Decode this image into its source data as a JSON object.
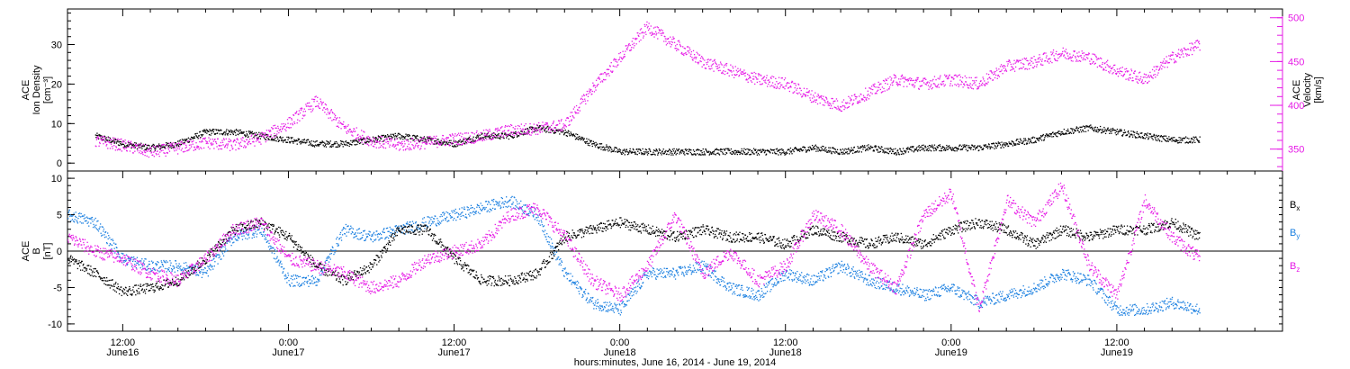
{
  "colors": {
    "black": "#000000",
    "magenta": "#e619e6",
    "blue": "#1a7fe0"
  },
  "chart_data": [
    {
      "type": "scatter",
      "panel": "top",
      "ylabel_left": [
        "ACE",
        "Ion Density",
        "[cm⁻³]"
      ],
      "ylabel_right": [
        "ACE",
        "Velocity",
        "[km/s]"
      ],
      "xlim": [
        -16,
        72
      ],
      "ylim_left": [
        -2,
        39
      ],
      "ylim_right": [
        325,
        510
      ],
      "yticks_left": [
        0,
        10,
        20,
        30
      ],
      "yticks_right": [
        350,
        400,
        450,
        500
      ],
      "series": [
        {
          "color": "black",
          "axis": "left",
          "x": [
            -14,
            -12,
            -10,
            -8,
            -6,
            -4,
            -2,
            0,
            2,
            4,
            6,
            8,
            10,
            12,
            14,
            16,
            18,
            20,
            22,
            24,
            26,
            28,
            30,
            32,
            34,
            36,
            38,
            40,
            42,
            44,
            46,
            48,
            50,
            52,
            54,
            56,
            58,
            60,
            62,
            64,
            66
          ],
          "y": [
            7,
            5,
            4,
            5,
            8,
            8,
            7,
            6,
            5,
            5,
            6,
            7,
            6,
            5,
            7,
            7,
            9,
            8,
            5,
            3,
            3,
            3,
            3,
            3,
            3,
            3,
            4,
            3,
            4,
            3,
            4,
            4,
            4,
            5,
            6,
            8,
            9,
            8,
            7,
            6,
            6
          ]
        },
        {
          "color": "magenta",
          "axis": "right",
          "x": [
            -14,
            -12,
            -10,
            -8,
            -6,
            -4,
            -2,
            0,
            2,
            4,
            6,
            8,
            10,
            12,
            14,
            16,
            18,
            20,
            22,
            24,
            26,
            28,
            30,
            32,
            34,
            36,
            38,
            40,
            42,
            44,
            46,
            48,
            50,
            52,
            54,
            56,
            58,
            60,
            62,
            64,
            66
          ],
          "y": [
            360,
            355,
            347,
            352,
            358,
            355,
            363,
            380,
            405,
            375,
            360,
            355,
            358,
            362,
            365,
            372,
            374,
            378,
            420,
            455,
            490,
            470,
            450,
            440,
            430,
            425,
            410,
            400,
            415,
            430,
            425,
            430,
            425,
            445,
            450,
            460,
            455,
            440,
            430,
            455,
            470
          ]
        }
      ]
    },
    {
      "type": "scatter",
      "panel": "bottom",
      "ylabel_left": [
        "ACE",
        "B",
        "[nT]"
      ],
      "xlim": [
        -16,
        72
      ],
      "ylim": [
        -11,
        11
      ],
      "yticks": [
        -10,
        -5,
        0,
        5,
        10
      ],
      "legend": [
        "B",
        "B",
        "B"
      ],
      "legend_subscripts": [
        "x",
        "y",
        "z"
      ],
      "x_tick_labels": [
        "12:00",
        "0:00",
        "12:00",
        "0:00",
        "12:00",
        "0:00",
        "12:00"
      ],
      "x_tick_dates": [
        "June16",
        "June17",
        "June17",
        "June18",
        "June18",
        "June19",
        "June19"
      ],
      "x_tick_values": [
        -12,
        0,
        12,
        24,
        36,
        48,
        60
      ],
      "xlabel": "hours:minutes, June 16, 2014 - June 19, 2014",
      "series": [
        {
          "color": "black",
          "x": [
            -16,
            -14,
            -12,
            -10,
            -8,
            -6,
            -4,
            -2,
            0,
            2,
            4,
            6,
            8,
            10,
            12,
            14,
            16,
            18,
            20,
            22,
            24,
            26,
            28,
            30,
            32,
            34,
            36,
            38,
            40,
            42,
            44,
            46,
            48,
            50,
            52,
            54,
            56,
            58,
            60,
            62,
            64,
            66
          ],
          "y": [
            -1,
            -3,
            -5.5,
            -5,
            -4,
            -1,
            3,
            4,
            2,
            -2,
            -4,
            -2,
            3,
            3,
            -1,
            -4,
            -4,
            -3,
            2,
            3,
            4,
            3,
            2,
            3,
            2,
            2,
            1,
            3,
            2,
            1,
            2,
            1,
            3,
            4,
            3,
            1,
            3,
            2,
            3,
            3,
            4,
            2
          ]
        },
        {
          "color": "blue",
          "x": [
            -16,
            -14,
            -12,
            -10,
            -8,
            -6,
            -4,
            -2,
            0,
            2,
            4,
            6,
            8,
            10,
            12,
            14,
            16,
            18,
            20,
            22,
            24,
            26,
            28,
            30,
            32,
            34,
            36,
            38,
            40,
            42,
            44,
            46,
            48,
            50,
            52,
            54,
            56,
            58,
            60,
            62,
            64,
            66
          ],
          "y": [
            5,
            4,
            -1,
            -2,
            -2,
            -3,
            2,
            3,
            -4,
            -4,
            3,
            2,
            3,
            4,
            5,
            6,
            7,
            5,
            -3,
            -7,
            -8,
            -3,
            -3,
            -2,
            -5,
            -6,
            -3,
            -4,
            -2,
            -4,
            -5,
            -6,
            -5,
            -7,
            -6,
            -5,
            -3,
            -4,
            -8,
            -8,
            -7,
            -8
          ]
        },
        {
          "color": "magenta",
          "x": [
            -16,
            -14,
            -12,
            -10,
            -8,
            -6,
            -4,
            -2,
            0,
            2,
            4,
            6,
            8,
            10,
            12,
            14,
            16,
            18,
            20,
            22,
            24,
            26,
            28,
            30,
            32,
            34,
            36,
            38,
            40,
            42,
            44,
            46,
            48,
            50,
            52,
            54,
            56,
            58,
            60,
            62,
            64,
            66
          ],
          "y": [
            2,
            0,
            -1,
            -3,
            -4,
            -1,
            3,
            4,
            -1,
            -2,
            -3,
            -5,
            -4,
            -1,
            0,
            1,
            5,
            6,
            2,
            -4,
            -6,
            -2,
            5,
            -3,
            0,
            -4,
            -2,
            5,
            3,
            -2,
            -5,
            5,
            8,
            -8,
            7,
            4,
            9,
            -2,
            -6,
            7,
            2,
            -1
          ]
        }
      ]
    }
  ]
}
